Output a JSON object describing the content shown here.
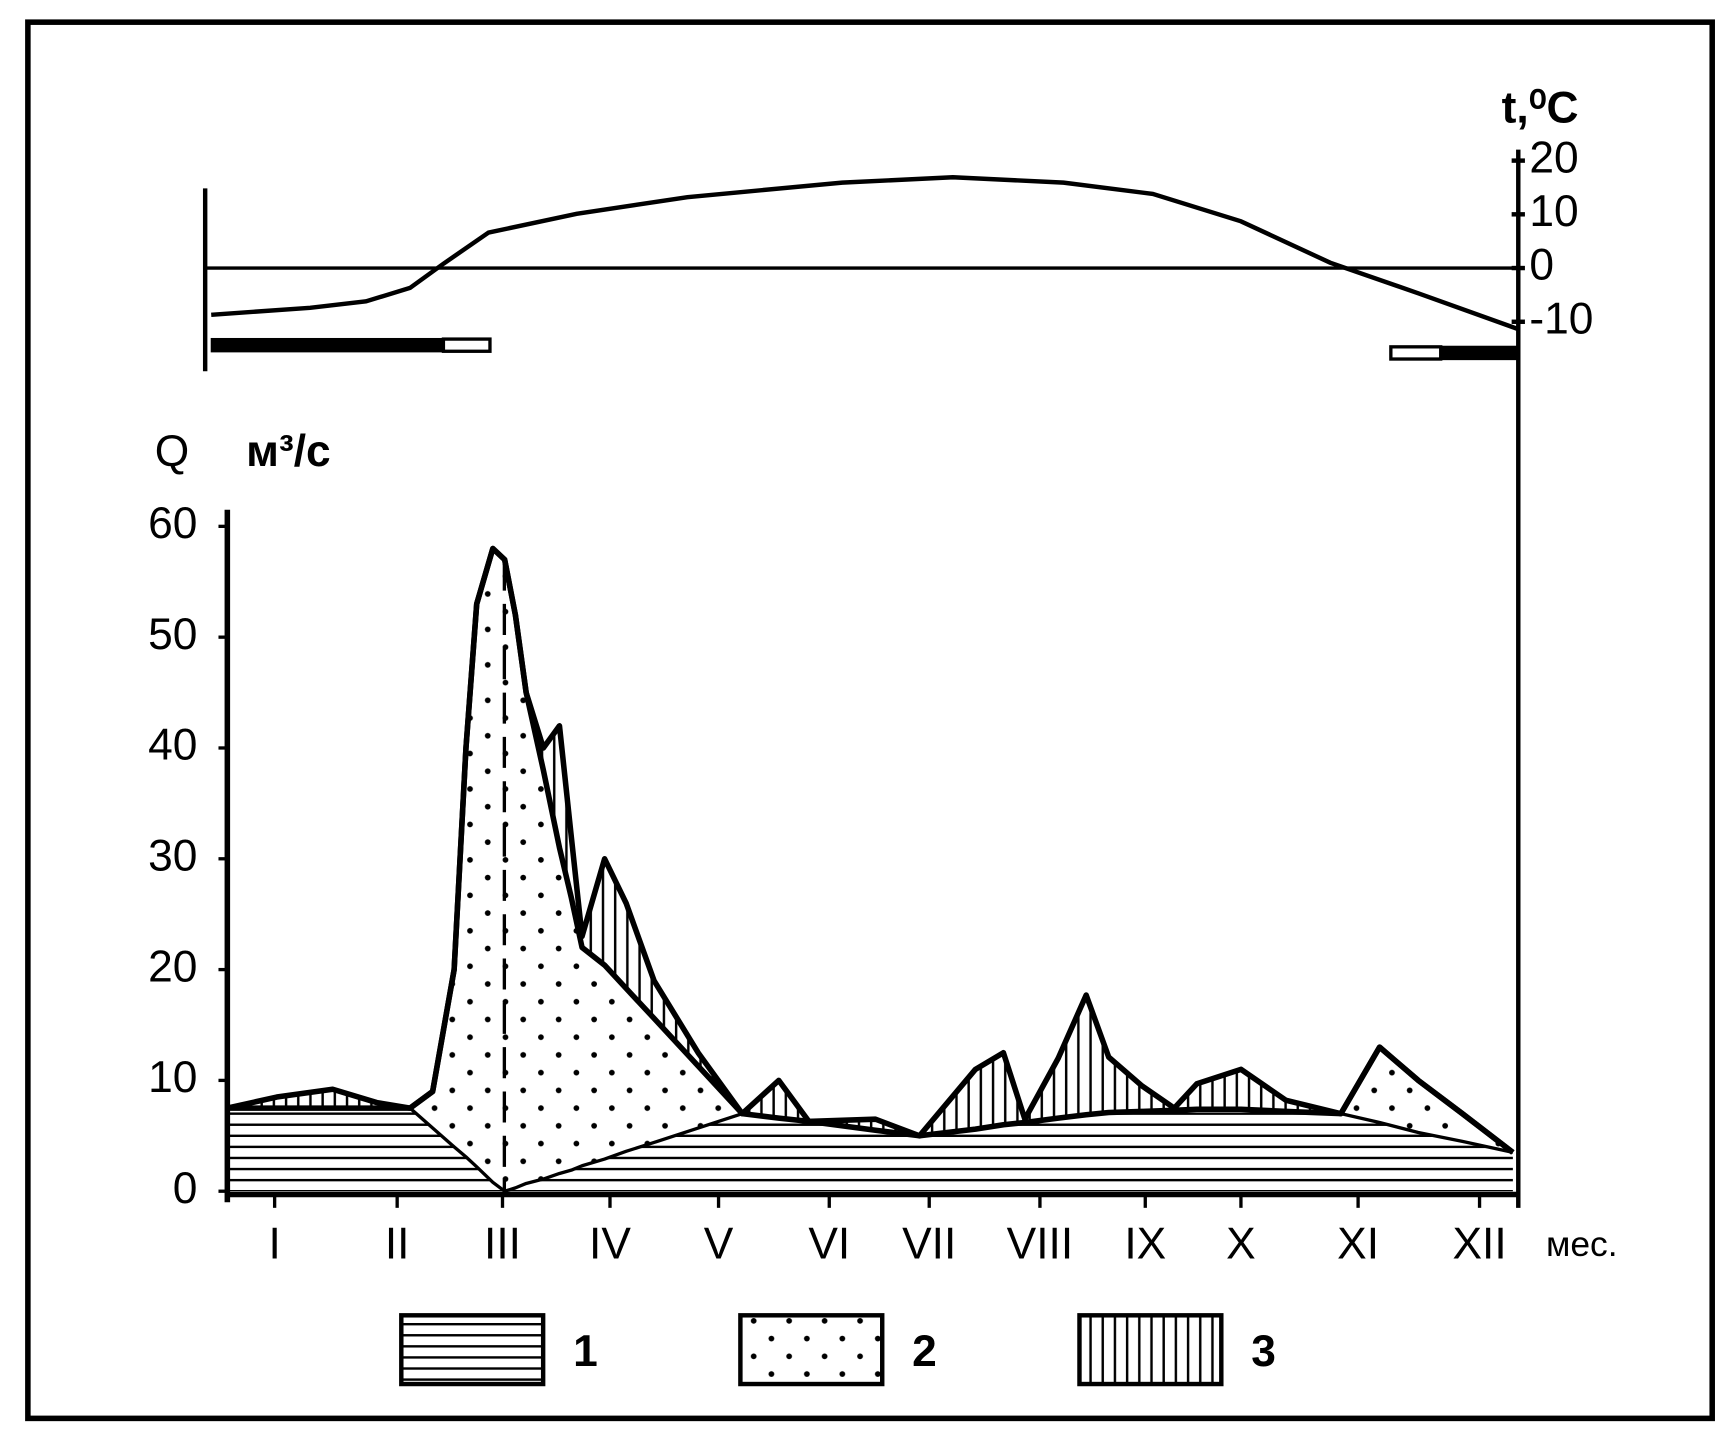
{
  "chart_data": [
    {
      "type": "line",
      "ylabel": "t,⁰C",
      "color": "#000000",
      "x": [
        -0.15,
        0.77,
        1.29,
        1.7,
        2.01,
        2.43,
        3.25,
        4.28,
        5.72,
        6.75,
        7.78,
        8.61,
        9.43,
        10.26,
        11.08,
        12
      ],
      "values": [
        -8.7,
        -7.4,
        -6.2,
        -3.7,
        0.8,
        6.6,
        10.1,
        13.2,
        15.9,
        16.9,
        15.9,
        13.8,
        8.7,
        1,
        -4.7,
        -11.3
      ],
      "xlim": [
        -0.2,
        12
      ],
      "ylim": [
        -19,
        23
      ],
      "yticks": [
        20,
        10,
        0,
        -10
      ]
    },
    {
      "type": "stacked-area",
      "ylabel": "Q",
      "yunit": "м³/с",
      "xlabel": "мес.",
      "x": [
        0,
        0.46,
        0.98,
        1.39,
        1.7,
        1.91,
        2.11,
        2.22,
        2.32,
        2.47,
        2.58,
        2.68,
        2.78,
        2.94,
        3.09,
        3.2,
        3.3,
        3.51,
        3.71,
        3.97,
        4.38,
        4.79,
        5.13,
        5.41,
        6.03,
        6.44,
        6.96,
        7.22,
        7.42,
        7.73,
        7.99,
        8.2,
        8.51,
        8.81,
        9.02,
        9.43,
        9.85,
        10.36,
        10.72,
        11.08,
        11.49,
        11.96
      ],
      "series": [
        {
          "name": "1",
          "pattern": "horizontal",
          "values": [
            7.5,
            7.5,
            7.5,
            7.5,
            7.5,
            5.7,
            4.0,
            3.1,
            2.2,
            0.8,
            0,
            0.3,
            0.7,
            1.1,
            1.6,
            1.9,
            2.3,
            2.9,
            3.6,
            4.4,
            5.7,
            7,
            6.6,
            6.3,
            5.5,
            5,
            5.6,
            6,
            6.2,
            6.6,
            6.9,
            7.1,
            7.2,
            7.3,
            7.4,
            7.4,
            7.2,
            7,
            6.2,
            5.3,
            4.5,
            3.5
          ]
        },
        {
          "name": "2",
          "pattern": "dots",
          "values": [
            0,
            0,
            0,
            0,
            0,
            3.3,
            16,
            36.9,
            50.8,
            57.2,
            57,
            51.7,
            44.3,
            36.9,
            29.4,
            24.6,
            19.7,
            17.5,
            14.7,
            11.2,
            5.6,
            0,
            0,
            0,
            0,
            0,
            0,
            0,
            0,
            0,
            0,
            0,
            0,
            0,
            0,
            0,
            0,
            0,
            6.8,
            4.7,
            2.5,
            0
          ]
        },
        {
          "name": "3",
          "pattern": "vertical",
          "values": [
            0,
            1,
            1.7,
            0.5,
            0,
            0,
            0,
            0,
            0,
            0,
            0,
            0,
            0,
            2,
            11,
            5.5,
            1,
            9.6,
            7.7,
            3.4,
            1.2,
            0,
            3.4,
            0,
            1,
            0,
            5.4,
            6.5,
            0.3,
            5.4,
            10.8,
            5,
            2.3,
            0.2,
            2.3,
            3.6,
            1,
            0,
            0,
            0,
            0,
            0
          ]
        }
      ],
      "xlim": [
        0,
        12
      ],
      "ylim": [
        0,
        62
      ],
      "yticks": [
        0,
        10,
        20,
        30,
        40,
        50,
        60
      ],
      "xticks": [
        {
          "value": 0.44,
          "label": "I"
        },
        {
          "value": 1.58,
          "label": "II"
        },
        {
          "value": 2.56,
          "label": "III"
        },
        {
          "value": 3.56,
          "label": "IV"
        },
        {
          "value": 4.57,
          "label": "V"
        },
        {
          "value": 5.6,
          "label": "VI"
        },
        {
          "value": 6.53,
          "label": "VII"
        },
        {
          "value": 7.56,
          "label": "VIII"
        },
        {
          "value": 8.54,
          "label": "IX"
        },
        {
          "value": 9.43,
          "label": "X"
        },
        {
          "value": 10.52,
          "label": "XI"
        },
        {
          "value": 11.65,
          "label": "XII"
        }
      ]
    }
  ]
}
